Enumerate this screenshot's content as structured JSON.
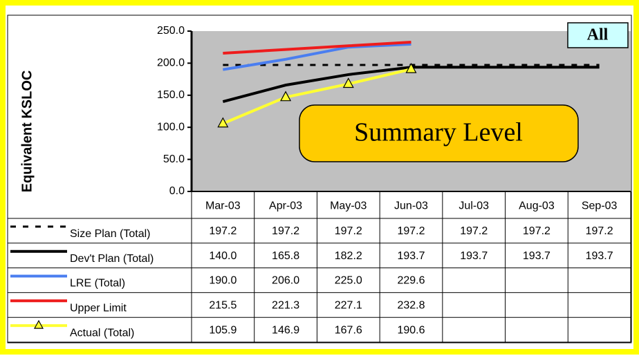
{
  "chart_data": {
    "type": "line",
    "y_label": "Equivalent KSLOC",
    "badge": "All",
    "annotation": "Summary Level",
    "categories": [
      "Mar-03",
      "Apr-03",
      "May-03",
      "Jun-03",
      "Jul-03",
      "Aug-03",
      "Sep-03"
    ],
    "ylim": [
      0,
      250
    ],
    "yticks": [
      {
        "value": 0,
        "label": "0.0"
      },
      {
        "value": 50,
        "label": "50.0"
      },
      {
        "value": 100,
        "label": "100.0"
      },
      {
        "value": 150,
        "label": "150.0"
      },
      {
        "value": 200,
        "label": "200.0"
      },
      {
        "value": 250,
        "label": "250.0"
      }
    ],
    "series": [
      {
        "name": "Size Plan (Total)",
        "color": "#000000",
        "style": "dashed",
        "values": [
          197.2,
          197.2,
          197.2,
          197.2,
          197.2,
          197.2,
          197.2
        ],
        "value_labels": [
          "197.2",
          "197.2",
          "197.2",
          "197.2",
          "197.2",
          "197.2",
          "197.2"
        ]
      },
      {
        "name": "Dev't Plan (Total)",
        "color": "#000000",
        "style": "solid",
        "values": [
          140,
          165.8,
          182.2,
          193.7,
          193.7,
          193.7,
          193.7
        ],
        "value_labels": [
          "140.0",
          "165.8",
          "182.2",
          "193.7",
          "193.7",
          "193.7",
          "193.7"
        ]
      },
      {
        "name": "LRE (Total)",
        "color": "#4a7ef0",
        "style": "solid",
        "values": [
          190,
          206,
          225,
          229.6,
          null,
          null,
          null
        ],
        "value_labels": [
          "190.0",
          "206.0",
          "225.0",
          "229.6",
          null,
          null,
          null
        ]
      },
      {
        "name": "Upper Limit",
        "color": "#ee1c1c",
        "style": "solid",
        "values": [
          215.5,
          221.3,
          227.1,
          232.8,
          null,
          null,
          null
        ],
        "value_labels": [
          "215.5",
          "221.3",
          "227.1",
          "232.8",
          null,
          null,
          null
        ]
      },
      {
        "name": "Actual (Total)",
        "color": "#ffff33",
        "style": "marker",
        "values": [
          105.9,
          146.9,
          167.6,
          190.6,
          null,
          null,
          null
        ],
        "value_labels": [
          "105.9",
          "146.9",
          "167.6",
          "190.6",
          null,
          null,
          null
        ]
      }
    ]
  }
}
